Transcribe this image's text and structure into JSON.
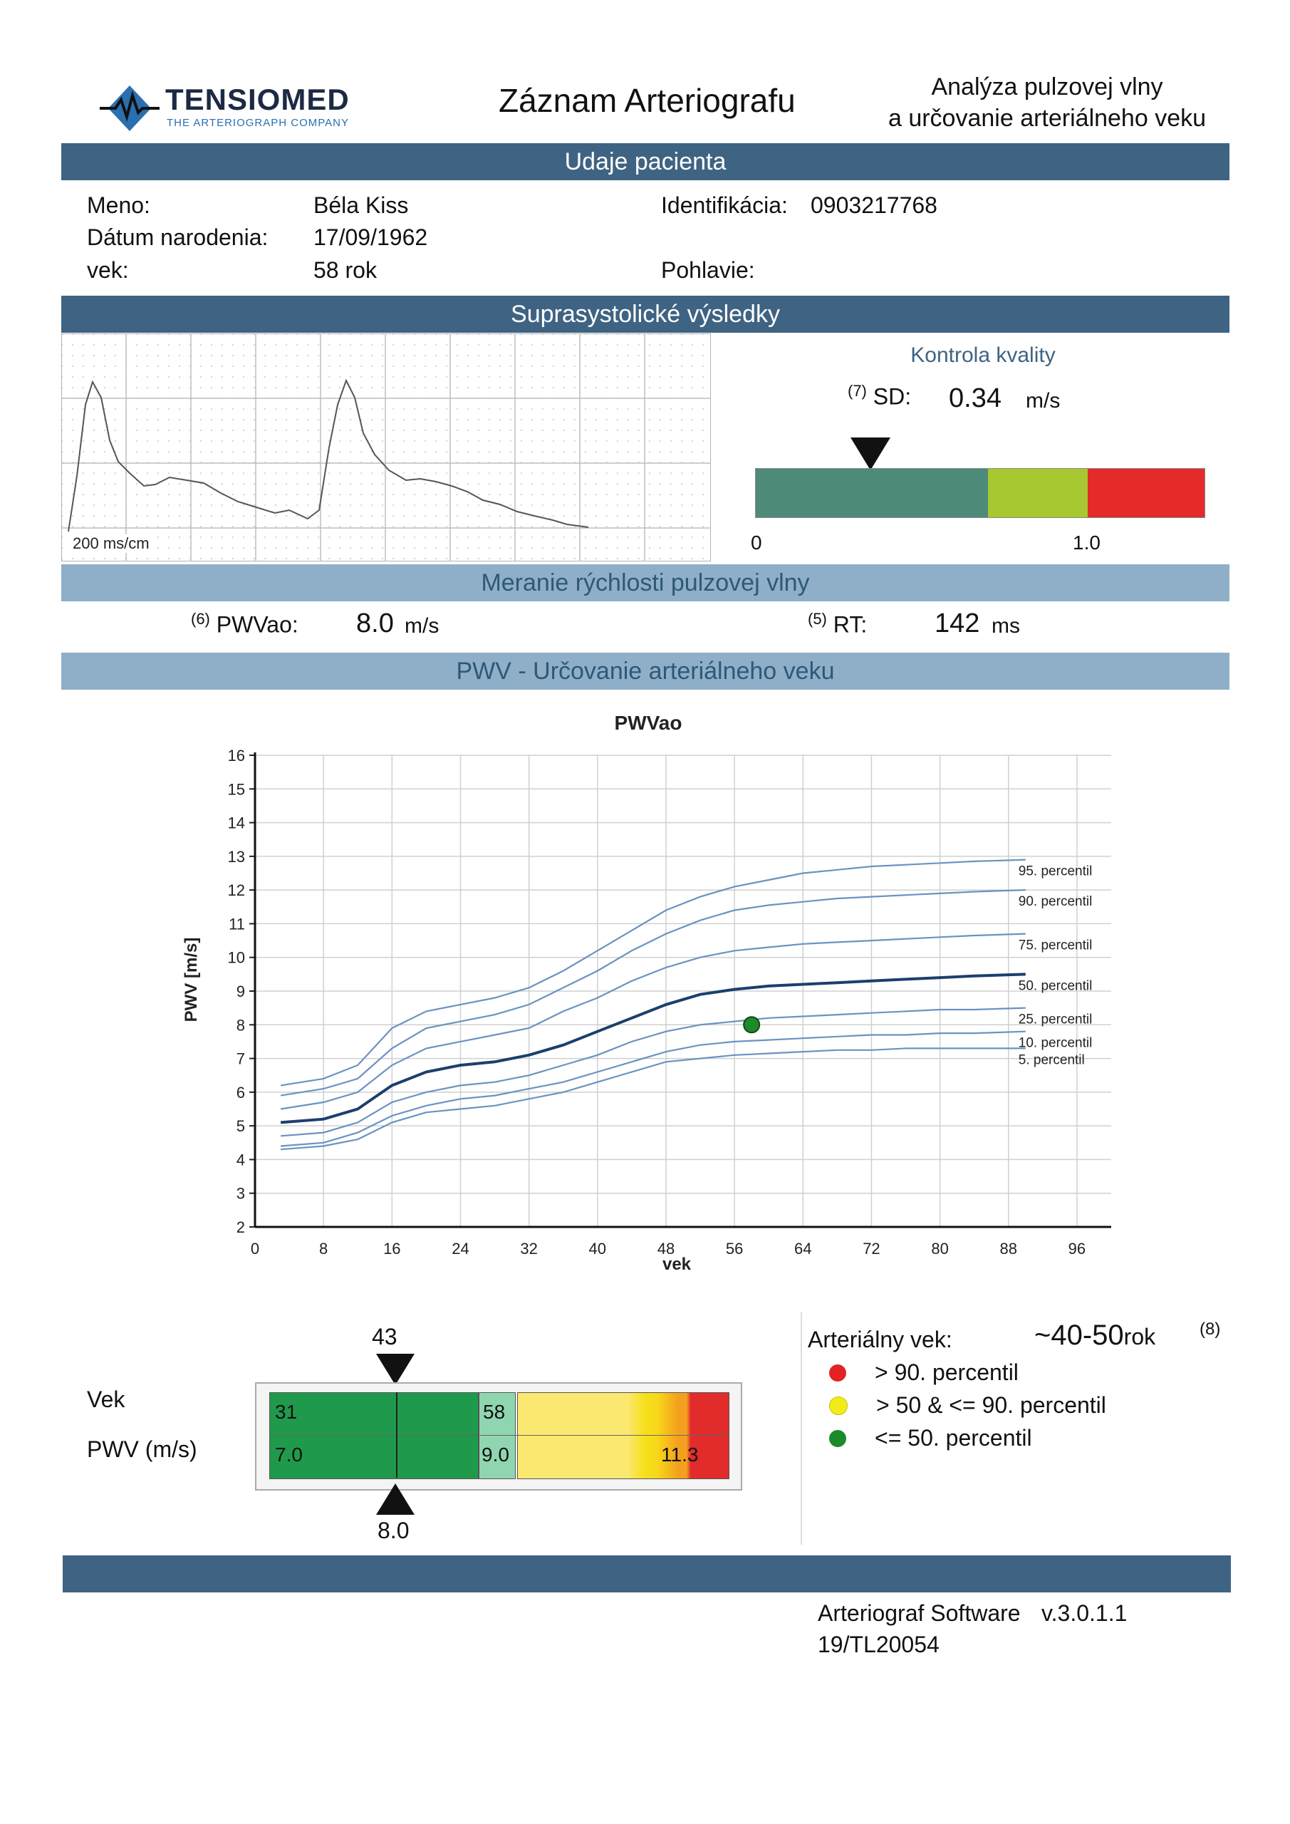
{
  "header": {
    "logo_brand": "TENSIOMED",
    "logo_tagline": "THE ARTERIOGRAPH COMPANY",
    "title": "Záznam Arteriografu",
    "subtitle_line1": "Analýza pulzovej vlny",
    "subtitle_line2": "a určovanie arteriálneho veku"
  },
  "patient": {
    "section_title": "Udaje pacienta",
    "name_label": "Meno:",
    "name": "Béla Kiss",
    "dob_label": "Dátum narodenia:",
    "dob": "17/09/1962",
    "age_label": "vek:",
    "age": "58 rok",
    "id_label": "Identifikácia:",
    "id": "0903217768",
    "sex_label": "Pohlavie:",
    "sex": ""
  },
  "suprasystolic": {
    "section_title": "Suprasystolické výsledky",
    "scale_label": "200 ms/cm",
    "quality_title": "Kontrola kvality",
    "sd_note": "(7)",
    "sd_label": "SD:",
    "sd_value": "0.34",
    "sd_unit": "m/s",
    "sd_numeric": 0.34,
    "scale_min": "0",
    "scale_mid": "1.0",
    "colors": {
      "green": "#4e8a7a",
      "lime": "#a8c832",
      "red": "#e52a2a"
    }
  },
  "pwv_measure": {
    "section_title": "Meranie rýchlosti pulzovej vlny",
    "pwvao_note": "(6)",
    "pwvao_label": "PWVao:",
    "pwvao_value": "8.0",
    "pwvao_unit": "m/s",
    "rt_note": "(5)",
    "rt_label": "RT:",
    "rt_value": "142",
    "rt_unit": "ms"
  },
  "art_age_section": {
    "section_title": "PWV - Určovanie arteriálneho veku"
  },
  "chart_data": {
    "type": "line",
    "title": "PWVao",
    "xlabel": "vek",
    "ylabel": "PWV [m/s]",
    "xlim": [
      0,
      100
    ],
    "ylim": [
      2,
      16
    ],
    "xticks": [
      "0",
      "8",
      "16",
      "24",
      "32",
      "40",
      "48",
      "56",
      "64",
      "72",
      "80",
      "88",
      "96"
    ],
    "yticks": [
      "2",
      "3",
      "4",
      "5",
      "6",
      "7",
      "8",
      "9",
      "10",
      "11",
      "12",
      "13",
      "14",
      "15",
      "16"
    ],
    "grid": true,
    "x": [
      3,
      8,
      12,
      16,
      20,
      24,
      28,
      32,
      36,
      40,
      44,
      48,
      52,
      56,
      60,
      64,
      68,
      72,
      76,
      80,
      84,
      90
    ],
    "series": [
      {
        "name": "95. percentil",
        "values": [
          6.2,
          6.4,
          6.8,
          7.9,
          8.4,
          8.6,
          8.8,
          9.1,
          9.6,
          10.2,
          10.8,
          11.4,
          11.8,
          12.1,
          12.3,
          12.5,
          12.6,
          12.7,
          12.75,
          12.8,
          12.85,
          12.9
        ]
      },
      {
        "name": "90. percentil",
        "values": [
          5.9,
          6.1,
          6.4,
          7.3,
          7.9,
          8.1,
          8.3,
          8.6,
          9.1,
          9.6,
          10.2,
          10.7,
          11.1,
          11.4,
          11.55,
          11.65,
          11.75,
          11.8,
          11.85,
          11.9,
          11.95,
          12.0
        ]
      },
      {
        "name": "75. percentil",
        "values": [
          5.5,
          5.7,
          6.0,
          6.8,
          7.3,
          7.5,
          7.7,
          7.9,
          8.4,
          8.8,
          9.3,
          9.7,
          10.0,
          10.2,
          10.3,
          10.4,
          10.45,
          10.5,
          10.55,
          10.6,
          10.65,
          10.7
        ]
      },
      {
        "name": "50. percentil",
        "values": [
          5.1,
          5.2,
          5.5,
          6.2,
          6.6,
          6.8,
          6.9,
          7.1,
          7.4,
          7.8,
          8.2,
          8.6,
          8.9,
          9.05,
          9.15,
          9.2,
          9.25,
          9.3,
          9.35,
          9.4,
          9.45,
          9.5
        ]
      },
      {
        "name": "25. percentil",
        "values": [
          4.7,
          4.8,
          5.1,
          5.7,
          6.0,
          6.2,
          6.3,
          6.5,
          6.8,
          7.1,
          7.5,
          7.8,
          8.0,
          8.1,
          8.2,
          8.25,
          8.3,
          8.35,
          8.4,
          8.45,
          8.45,
          8.5
        ]
      },
      {
        "name": "10. percentil",
        "values": [
          4.4,
          4.5,
          4.8,
          5.3,
          5.6,
          5.8,
          5.9,
          6.1,
          6.3,
          6.6,
          6.9,
          7.2,
          7.4,
          7.5,
          7.55,
          7.6,
          7.65,
          7.7,
          7.7,
          7.75,
          7.75,
          7.8
        ]
      },
      {
        "name": "5. percentil",
        "values": [
          4.3,
          4.4,
          4.6,
          5.1,
          5.4,
          5.5,
          5.6,
          5.8,
          6.0,
          6.3,
          6.6,
          6.9,
          7.0,
          7.1,
          7.15,
          7.2,
          7.25,
          7.25,
          7.3,
          7.3,
          7.3,
          7.3
        ]
      }
    ],
    "measured_point": {
      "x": 58,
      "y": 8.0,
      "color": "#1e8a2a"
    }
  },
  "age_bar": {
    "vek_label": "Vek",
    "pwv_label": "PWV (m/s)",
    "top_marker_value": "43",
    "bottom_marker_value": "8.0",
    "age_low": "31",
    "age_mid": "58",
    "pwv_low": "7.0",
    "pwv_mid": "9.0",
    "pwv_high": "11.3",
    "colors": {
      "green": "#1f9a4c",
      "lightgreen": "#8fd6b0",
      "yellow": "#fbe871",
      "orange": "#f3a01f",
      "red": "#e22b2b"
    }
  },
  "legend": {
    "art_age_label": "Arteriálny vek:",
    "art_age_value": "~40-50",
    "art_age_unit": "rok",
    "note": "(8)",
    "items": [
      {
        "color": "#e32222",
        "label": "> 90. percentil"
      },
      {
        "color": "#f4ec1a",
        "label": "> 50 & <= 90. percentil"
      },
      {
        "color": "#1b8a2a",
        "label": "<= 50. percentil"
      }
    ]
  },
  "footer": {
    "software": "Arteriograf Software",
    "version": "v.3.0.1.1",
    "serial": "19/TL20054"
  }
}
